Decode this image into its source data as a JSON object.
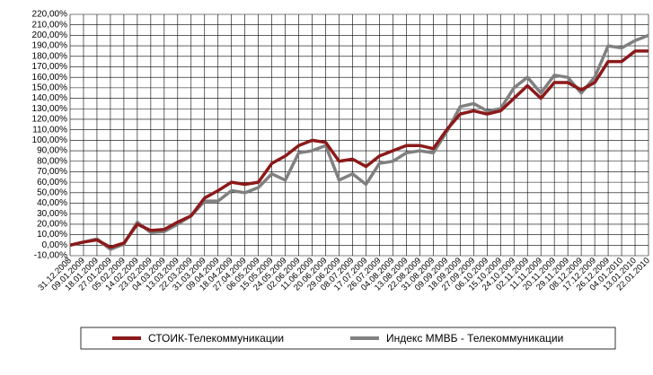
{
  "chart_data": {
    "type": "line",
    "categories": [
      "31.12.2008",
      "09.01.2009",
      "18.01.2009",
      "27.01.2009",
      "05.02.2009",
      "14.02.2009",
      "23.02.2009",
      "04.03.2009",
      "13.03.2009",
      "22.03.2009",
      "31.03.2009",
      "09.04.2009",
      "18.04.2009",
      "27.04.2009",
      "06.05.2009",
      "15.05.2009",
      "24.05.2009",
      "02.06.2009",
      "11.06.2009",
      "20.06.2009",
      "29.06.2009",
      "08.07.2009",
      "17.07.2009",
      "26.07.2009",
      "04.08.2009",
      "13.08.2009",
      "22.08.2009",
      "31.08.2009",
      "09.09.2009",
      "18.09.2009",
      "27.09.2009",
      "06.10.2009",
      "15.10.2009",
      "24.10.2009",
      "02.11.2009",
      "11.11.2009",
      "20.11.2009",
      "29.11.2009",
      "08.12.2009",
      "17.12.2009",
      "26.12.2009",
      "04.01.2010",
      "13.01.2010",
      "22.01.2010"
    ],
    "series": [
      {
        "name": "СТОИК-Телекоммуникации",
        "color": "#8b1a1a",
        "values": [
          0,
          3,
          5,
          -2,
          2,
          20,
          14,
          15,
          22,
          28,
          45,
          52,
          60,
          58,
          60,
          78,
          85,
          95,
          100,
          98,
          80,
          82,
          75,
          85,
          90,
          95,
          95,
          92,
          110,
          125,
          128,
          125,
          128,
          140,
          152,
          140,
          155,
          155,
          148,
          155,
          175,
          175,
          185,
          185
        ]
      },
      {
        "name": "Индекс ММВБ - Телекоммуникации",
        "color": "#808080",
        "values": [
          0,
          3,
          6,
          -4,
          1,
          22,
          12,
          13,
          20,
          28,
          42,
          42,
          52,
          50,
          55,
          68,
          62,
          88,
          90,
          95,
          62,
          68,
          58,
          78,
          80,
          88,
          90,
          88,
          108,
          132,
          135,
          128,
          130,
          150,
          160,
          145,
          162,
          160,
          145,
          160,
          190,
          188,
          195,
          200
        ]
      }
    ],
    "ylim": [
      -10,
      220
    ],
    "yticks": [
      {
        "value": -10,
        "label": "-10,00%"
      },
      {
        "value": 0,
        "label": "0,00%"
      },
      {
        "value": 10,
        "label": "10,00%"
      },
      {
        "value": 20,
        "label": "20,00%"
      },
      {
        "value": 30,
        "label": "30,00%"
      },
      {
        "value": 40,
        "label": "40,00%"
      },
      {
        "value": 50,
        "label": "50,00%"
      },
      {
        "value": 60,
        "label": "60,00%"
      },
      {
        "value": 70,
        "label": "70,00%"
      },
      {
        "value": 80,
        "label": "80,00%"
      },
      {
        "value": 90,
        "label": "90,00%"
      },
      {
        "value": 100,
        "label": "100,00%"
      },
      {
        "value": 110,
        "label": "110,00%"
      },
      {
        "value": 120,
        "label": "120,00%"
      },
      {
        "value": 130,
        "label": "130,00%"
      },
      {
        "value": 140,
        "label": "140,00%"
      },
      {
        "value": 150,
        "label": "150,00%"
      },
      {
        "value": 160,
        "label": "160,00%"
      },
      {
        "value": 170,
        "label": "170,00%"
      },
      {
        "value": 180,
        "label": "180,00%"
      },
      {
        "value": 190,
        "label": "190,00%"
      },
      {
        "value": 200,
        "label": "200,00%"
      },
      {
        "value": 210,
        "label": "210,00%"
      },
      {
        "value": 220,
        "label": "220,00%"
      }
    ],
    "grid": true,
    "legend": "bottom"
  }
}
